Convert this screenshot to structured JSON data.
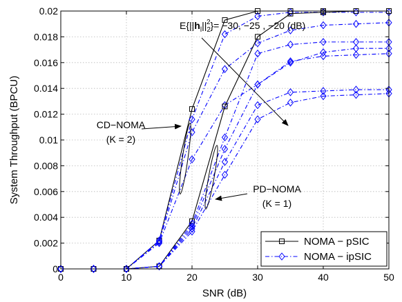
{
  "chart_data": {
    "type": "line",
    "xlabel": "SNR (dB)",
    "ylabel": "System Throughput (BPCU)",
    "xlim": [
      0,
      50
    ],
    "ylim": [
      0,
      0.02
    ],
    "xticks": [
      0,
      10,
      20,
      30,
      40,
      50
    ],
    "yticks": [
      0,
      0.002,
      0.004,
      0.006,
      0.008,
      0.01,
      0.012,
      0.014,
      0.016,
      0.018,
      0.02
    ],
    "xtick_labels": [
      "0",
      "10",
      "20",
      "30",
      "40",
      "50"
    ],
    "ytick_labels": [
      "0",
      "0.002",
      "0.004",
      "0.006",
      "0.008",
      "0.01",
      "0.012",
      "0.014",
      "0.016",
      "0.018",
      "0.02"
    ],
    "grid": true,
    "legend_position": "bottom-right",
    "x": [
      0,
      5,
      10,
      15,
      20,
      25,
      30,
      35,
      40,
      45,
      50
    ],
    "series": [
      {
        "name": "NOMA − pSIC",
        "group": "CD-NOMA",
        "style": "solid",
        "marker": "square",
        "color": "#000000",
        "values": [
          0,
          0,
          0,
          0.0022,
          0.0124,
          0.0193,
          0.02,
          0.02,
          0.02,
          0.02,
          0.02
        ]
      },
      {
        "group": "CD-NOMA",
        "style": "dashdot",
        "marker": "diamond",
        "color": "#0000ff",
        "values": [
          0,
          0,
          0,
          0.0022,
          0.0116,
          0.0182,
          0.0196,
          0.0199,
          0.0199,
          0.0199,
          0.0199
        ]
      },
      {
        "group": "CD-NOMA",
        "style": "dashdot",
        "marker": "diamond",
        "color": "#0000ff",
        "values": [
          0,
          0,
          0,
          0.0021,
          0.0106,
          0.0155,
          0.0175,
          0.0185,
          0.0189,
          0.019,
          0.0191
        ]
      },
      {
        "group": "CD-NOMA",
        "style": "dashdot",
        "marker": "diamond",
        "color": "#0000ff",
        "values": [
          0,
          0,
          0,
          0.002,
          0.0085,
          0.0127,
          0.0143,
          0.016,
          0.0168,
          0.0171,
          0.0171
        ]
      },
      {
        "group": "PD-NOMA",
        "style": "solid",
        "marker": "square",
        "color": "#000000",
        "values": [
          0,
          0,
          0,
          0.0002,
          0.0037,
          0.0126,
          0.018,
          0.0198,
          0.0199,
          0.02,
          0.02
        ]
      },
      {
        "name": "NOMA − ipSIC",
        "group": "PD-NOMA",
        "style": "dashdot",
        "marker": "diamond",
        "color": "#0000ff",
        "values": [
          0,
          0,
          0,
          0.0002,
          0.0035,
          0.0102,
          0.0167,
          0.0174,
          0.0176,
          0.0176,
          0.0176
        ]
      },
      {
        "group": "PD-NOMA",
        "style": "dashdot",
        "marker": "diamond",
        "color": "#0000ff",
        "values": [
          0,
          0,
          0,
          0.0002,
          0.0033,
          0.0093,
          0.0143,
          0.0161,
          0.0165,
          0.0166,
          0.0167
        ]
      },
      {
        "group": "PD-NOMA",
        "style": "dashdot",
        "marker": "diamond",
        "color": "#0000ff",
        "values": [
          0,
          0,
          0,
          0.0002,
          0.0031,
          0.0083,
          0.0127,
          0.0137,
          0.0138,
          0.0139,
          0.0139
        ]
      },
      {
        "group": "PD-NOMA",
        "style": "dashdot",
        "marker": "diamond",
        "color": "#0000ff",
        "values": [
          0,
          0,
          0,
          0.0002,
          0.0029,
          0.0073,
          0.0116,
          0.0129,
          0.0134,
          0.0135,
          0.0136
        ]
      }
    ],
    "legend": [
      {
        "label": "NOMA − pSIC",
        "style": "solid",
        "marker": "square",
        "color": "#000000"
      },
      {
        "label": "NOMA − ipSIC",
        "style": "dashdot",
        "marker": "diamond",
        "color": "#0000ff"
      }
    ],
    "annotations": {
      "expectation": {
        "prefix": "E{||",
        "bold": "h",
        "sub": "l",
        "mid": "||",
        "sub2": "2",
        "sup": "2",
        "suffix": "}= −30, −25 , −20 (dB)"
      },
      "cd_label_line1": "CD−NOMA",
      "cd_label_line2": "(K = 2)",
      "pd_label_line1": "PD−NOMA",
      "pd_label_line2": "(K = 1)"
    }
  }
}
